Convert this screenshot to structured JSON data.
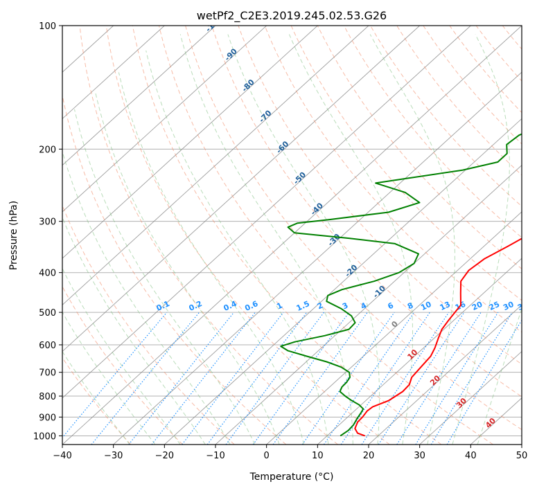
{
  "chart_data": {
    "type": "skew-t log-p",
    "title": "wetPf2_C2E3.2019.245.02.53.G26",
    "xlabel": "Temperature (°C)",
    "ylabel": "Pressure (hPa)",
    "xlim": [
      -40,
      50
    ],
    "ylim": [
      1050,
      100
    ],
    "x_ticks": [
      -40,
      -30,
      -20,
      -10,
      0,
      10,
      20,
      30,
      40,
      50
    ],
    "y_ticks": [
      100,
      200,
      300,
      400,
      500,
      600,
      700,
      800,
      900,
      1000
    ],
    "grid": true,
    "skew": 45,
    "series": [
      {
        "color": "#ff0000",
        "points": [
          [
            1000,
            17.4
          ],
          [
            985,
            15.4
          ],
          [
            960,
            13.9
          ],
          [
            925,
            13.0
          ],
          [
            900,
            12.9
          ],
          [
            870,
            12.5
          ],
          [
            850,
            12.7
          ],
          [
            820,
            14.5
          ],
          [
            780,
            15.3
          ],
          [
            750,
            15.1
          ],
          [
            720,
            14.0
          ],
          [
            680,
            13.6
          ],
          [
            640,
            13.2
          ],
          [
            610,
            12.2
          ],
          [
            580,
            10.9
          ],
          [
            550,
            9.6
          ],
          [
            520,
            8.9
          ],
          [
            480,
            8.1
          ],
          [
            450,
            5.6
          ],
          [
            420,
            3.0
          ],
          [
            395,
            2.2
          ],
          [
            370,
            2.8
          ],
          [
            345,
            4.7
          ],
          [
            320,
            6.5
          ],
          [
            300,
            7.4
          ],
          [
            280,
            6.7
          ],
          [
            260,
            6.3
          ],
          [
            240,
            6.5
          ],
          [
            225,
            6.5
          ],
          [
            210,
            6.8
          ],
          [
            195,
            7.4
          ],
          [
            180,
            6.7
          ],
          [
            165,
            6.5
          ],
          [
            150,
            6.0
          ],
          [
            140,
            6.2
          ],
          [
            130,
            7.2
          ],
          [
            120,
            9.5
          ],
          [
            110,
            12.5
          ],
          [
            100,
            14.3
          ]
        ]
      },
      {
        "color": "#008000",
        "points": [
          [
            1000,
            12.6
          ],
          [
            970,
            13.0
          ],
          [
            940,
            12.8
          ],
          [
            910,
            12.2
          ],
          [
            880,
            11.7
          ],
          [
            860,
            11.3
          ],
          [
            840,
            9.6
          ],
          [
            820,
            7.2
          ],
          [
            800,
            5.0
          ],
          [
            780,
            3.0
          ],
          [
            760,
            2.4
          ],
          [
            740,
            2.3
          ],
          [
            720,
            1.9
          ],
          [
            700,
            0.7
          ],
          [
            680,
            -2.0
          ],
          [
            660,
            -6.0
          ],
          [
            640,
            -11.0
          ],
          [
            620,
            -16.0
          ],
          [
            605,
            -18.3
          ],
          [
            590,
            -16.5
          ],
          [
            570,
            -12.0
          ],
          [
            550,
            -8.6
          ],
          [
            530,
            -8.8
          ],
          [
            510,
            -11.0
          ],
          [
            490,
            -14.5
          ],
          [
            470,
            -19.0
          ],
          [
            455,
            -20.0
          ],
          [
            440,
            -18.5
          ],
          [
            420,
            -14.0
          ],
          [
            400,
            -11.0
          ],
          [
            380,
            -10.0
          ],
          [
            360,
            -11.2
          ],
          [
            340,
            -18.0
          ],
          [
            330,
            -28.0
          ],
          [
            320,
            -40.0
          ],
          [
            310,
            -42.5
          ],
          [
            303,
            -41.5
          ],
          [
            297,
            -36.0
          ],
          [
            285,
            -26.0
          ],
          [
            270,
            -22.0
          ],
          [
            255,
            -27.0
          ],
          [
            242,
            -34.8
          ],
          [
            235,
            -29.0
          ],
          [
            225,
            -20.5
          ],
          [
            215,
            -15.4
          ],
          [
            205,
            -15.4
          ],
          [
            195,
            -17.4
          ],
          [
            185,
            -17.0
          ],
          [
            175,
            -14.6
          ],
          [
            165,
            -11.3
          ],
          [
            155,
            -8.5
          ],
          [
            145,
            -7.0
          ],
          [
            135,
            -5.6
          ],
          [
            125,
            -4.6
          ],
          [
            115,
            -3.2
          ],
          [
            105,
            -1.8
          ],
          [
            100,
            -1.0
          ]
        ]
      }
    ],
    "dry_adiabat_labels": [
      "-100",
      "-90",
      "-80",
      "-70",
      "-60",
      "-50",
      "-40",
      "-30",
      "-20",
      "-10",
      "0",
      "10",
      "20",
      "30",
      "40"
    ],
    "mixing_ratio_labels": [
      "0.1",
      "0.2",
      "0.4",
      "0.6",
      "1",
      "1.5",
      "2",
      "3",
      "4",
      "6",
      "8",
      "10",
      "13",
      "16",
      "20",
      "25",
      "30",
      "36"
    ],
    "colors": {
      "temperature": "#ff0000",
      "dewpoint": "#008000",
      "isotherm": "#8c8c8c",
      "dry_adiabat": "#f28e6b",
      "moist_adiabat": "#7fbf7f",
      "mixing_ratio": "#1e90ff",
      "label_cold": "#1f5f9a",
      "label_warm": "#d62728",
      "label_zero": "#808080"
    }
  }
}
